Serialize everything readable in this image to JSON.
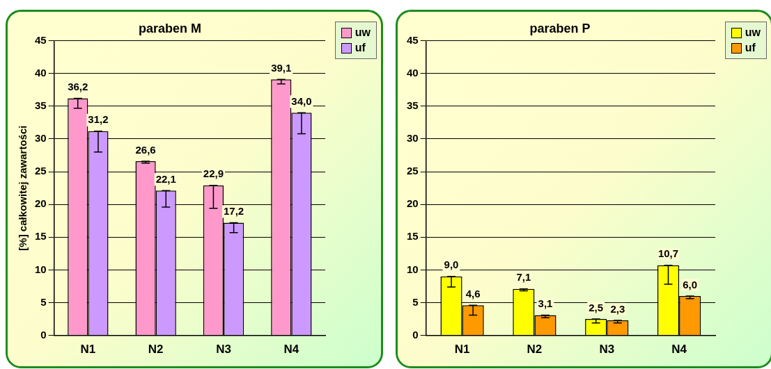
{
  "chart_data": [
    {
      "type": "bar",
      "title": "paraben M",
      "ylabel": "[%] całkowitej zawartości",
      "categories": [
        "N1",
        "N2",
        "N3",
        "N4"
      ],
      "series": [
        {
          "name": "uw",
          "color": "#ff99cc",
          "values": [
            36.2,
            26.6,
            22.9,
            39.1
          ],
          "value_labels": [
            "36,2",
            "26,6",
            "22,9",
            "39,1"
          ],
          "errors": [
            [
              34.7,
              36.2
            ],
            [
              26.3,
              26.6
            ],
            [
              19.4,
              22.9
            ],
            [
              38.4,
              39.1
            ]
          ]
        },
        {
          "name": "uf",
          "color": "#cc99ff",
          "values": [
            31.2,
            22.1,
            17.2,
            34.0
          ],
          "value_labels": [
            "31,2",
            "22,1",
            "17,2",
            "34,0"
          ],
          "errors": [
            [
              28.0,
              31.2
            ],
            [
              19.6,
              22.1
            ],
            [
              15.7,
              17.2
            ],
            [
              30.8,
              34.0
            ]
          ]
        }
      ],
      "ylim": [
        0,
        45
      ],
      "yticks": [
        0,
        5,
        10,
        15,
        20,
        25,
        30,
        35,
        40,
        45
      ],
      "grid": "y",
      "legend": "top right"
    },
    {
      "type": "bar",
      "title": "paraben P",
      "categories": [
        "N1",
        "N2",
        "N3",
        "N4"
      ],
      "series": [
        {
          "name": "uw",
          "color": "#ffff00",
          "values": [
            9.0,
            7.1,
            2.5,
            10.7
          ],
          "value_labels": [
            "9,0",
            "7,1",
            "2,5",
            "10,7"
          ],
          "errors": [
            [
              7.4,
              9.0
            ],
            [
              6.8,
              7.1
            ],
            [
              1.9,
              2.5
            ],
            [
              7.8,
              10.7
            ]
          ]
        },
        {
          "name": "uf",
          "color": "#ff9900",
          "values": [
            4.6,
            3.1,
            2.3,
            6.0
          ],
          "value_labels": [
            "4,6",
            "3,1",
            "2,3",
            "6,0"
          ],
          "errors": [
            [
              3.1,
              4.6
            ],
            [
              2.7,
              3.1
            ],
            [
              1.9,
              2.3
            ],
            [
              5.6,
              6.0
            ]
          ]
        }
      ],
      "ylim": [
        0,
        45
      ],
      "yticks": [
        0,
        5,
        10,
        15,
        20,
        25,
        30,
        35,
        40,
        45
      ],
      "grid": "y",
      "legend": "top right"
    }
  ]
}
